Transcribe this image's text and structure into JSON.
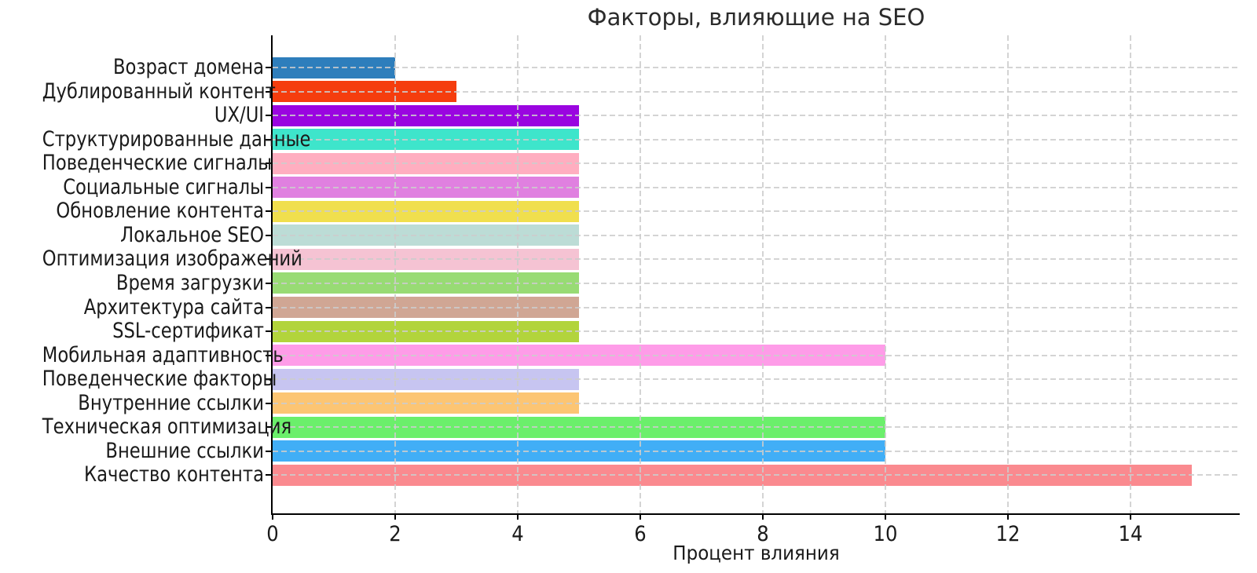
{
  "chart_data": {
    "type": "bar",
    "orientation": "horizontal",
    "title": "Факторы, влияющие на SEO",
    "xlabel": "Процент влияния",
    "ylabel": "",
    "xlim": [
      0,
      15.78
    ],
    "xticks": [
      0,
      2,
      4,
      6,
      8,
      10,
      12,
      14
    ],
    "grid": {
      "visible": true,
      "style": "dashed",
      "color": "#cccccc",
      "drawn_over_bars": true
    },
    "legend": "none",
    "background": "#ffffff",
    "text_color": "#1a1a1a",
    "categories": [
      "Возраст домена",
      "Дублированный контент",
      "UX/UI",
      "Структурированные данные",
      "Поведенческие сигналы",
      "Социальные сигналы",
      "Обновление контента",
      "Локальное SEO",
      "Оптимизация изображений",
      "Время загрузки",
      "Архитектура сайта",
      "SSL-сертификат",
      "Мобильная адаптивность",
      "Поведенческие факторы",
      "Внутренние ссылки",
      "Техническая оптимизация",
      "Внешние ссылки",
      "Качество контента"
    ],
    "series": [
      {
        "name": "Процент влияния",
        "values": [
          2,
          3,
          5,
          5,
          5,
          5,
          5,
          5,
          5,
          5,
          5,
          5,
          10,
          5,
          5,
          10,
          10,
          15
        ]
      }
    ],
    "bar_colors": [
      "#2E7EBC",
      "#F53D0E",
      "#9A05E0",
      "#3EE5CB",
      "#FFAEC0",
      "#E080E0",
      "#F0DF4E",
      "#BCDCD6",
      "#F5C3D3",
      "#98DB74",
      "#D0A694",
      "#B2D43C",
      "#FE9CE8",
      "#C7C5F1",
      "#FCC573",
      "#6BEF6B",
      "#41AEF6",
      "#FA8A8F"
    ]
  }
}
